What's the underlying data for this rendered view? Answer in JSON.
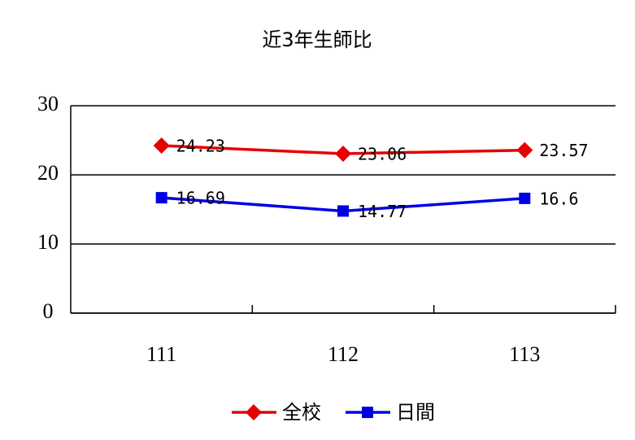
{
  "chart_data": {
    "type": "line",
    "title": "近3年生師比",
    "categories": [
      "111",
      "112",
      "113"
    ],
    "series": [
      {
        "name": "全校",
        "color": "#e60000",
        "marker": "diamond",
        "values": [
          24.23,
          23.06,
          23.57
        ]
      },
      {
        "name": "日間",
        "color": "#0000e6",
        "marker": "square",
        "values": [
          16.69,
          14.77,
          16.6
        ]
      }
    ],
    "ylim": [
      0,
      30
    ],
    "yticks": [
      0,
      10,
      20,
      30
    ],
    "grid": true,
    "legend": "bottom"
  }
}
